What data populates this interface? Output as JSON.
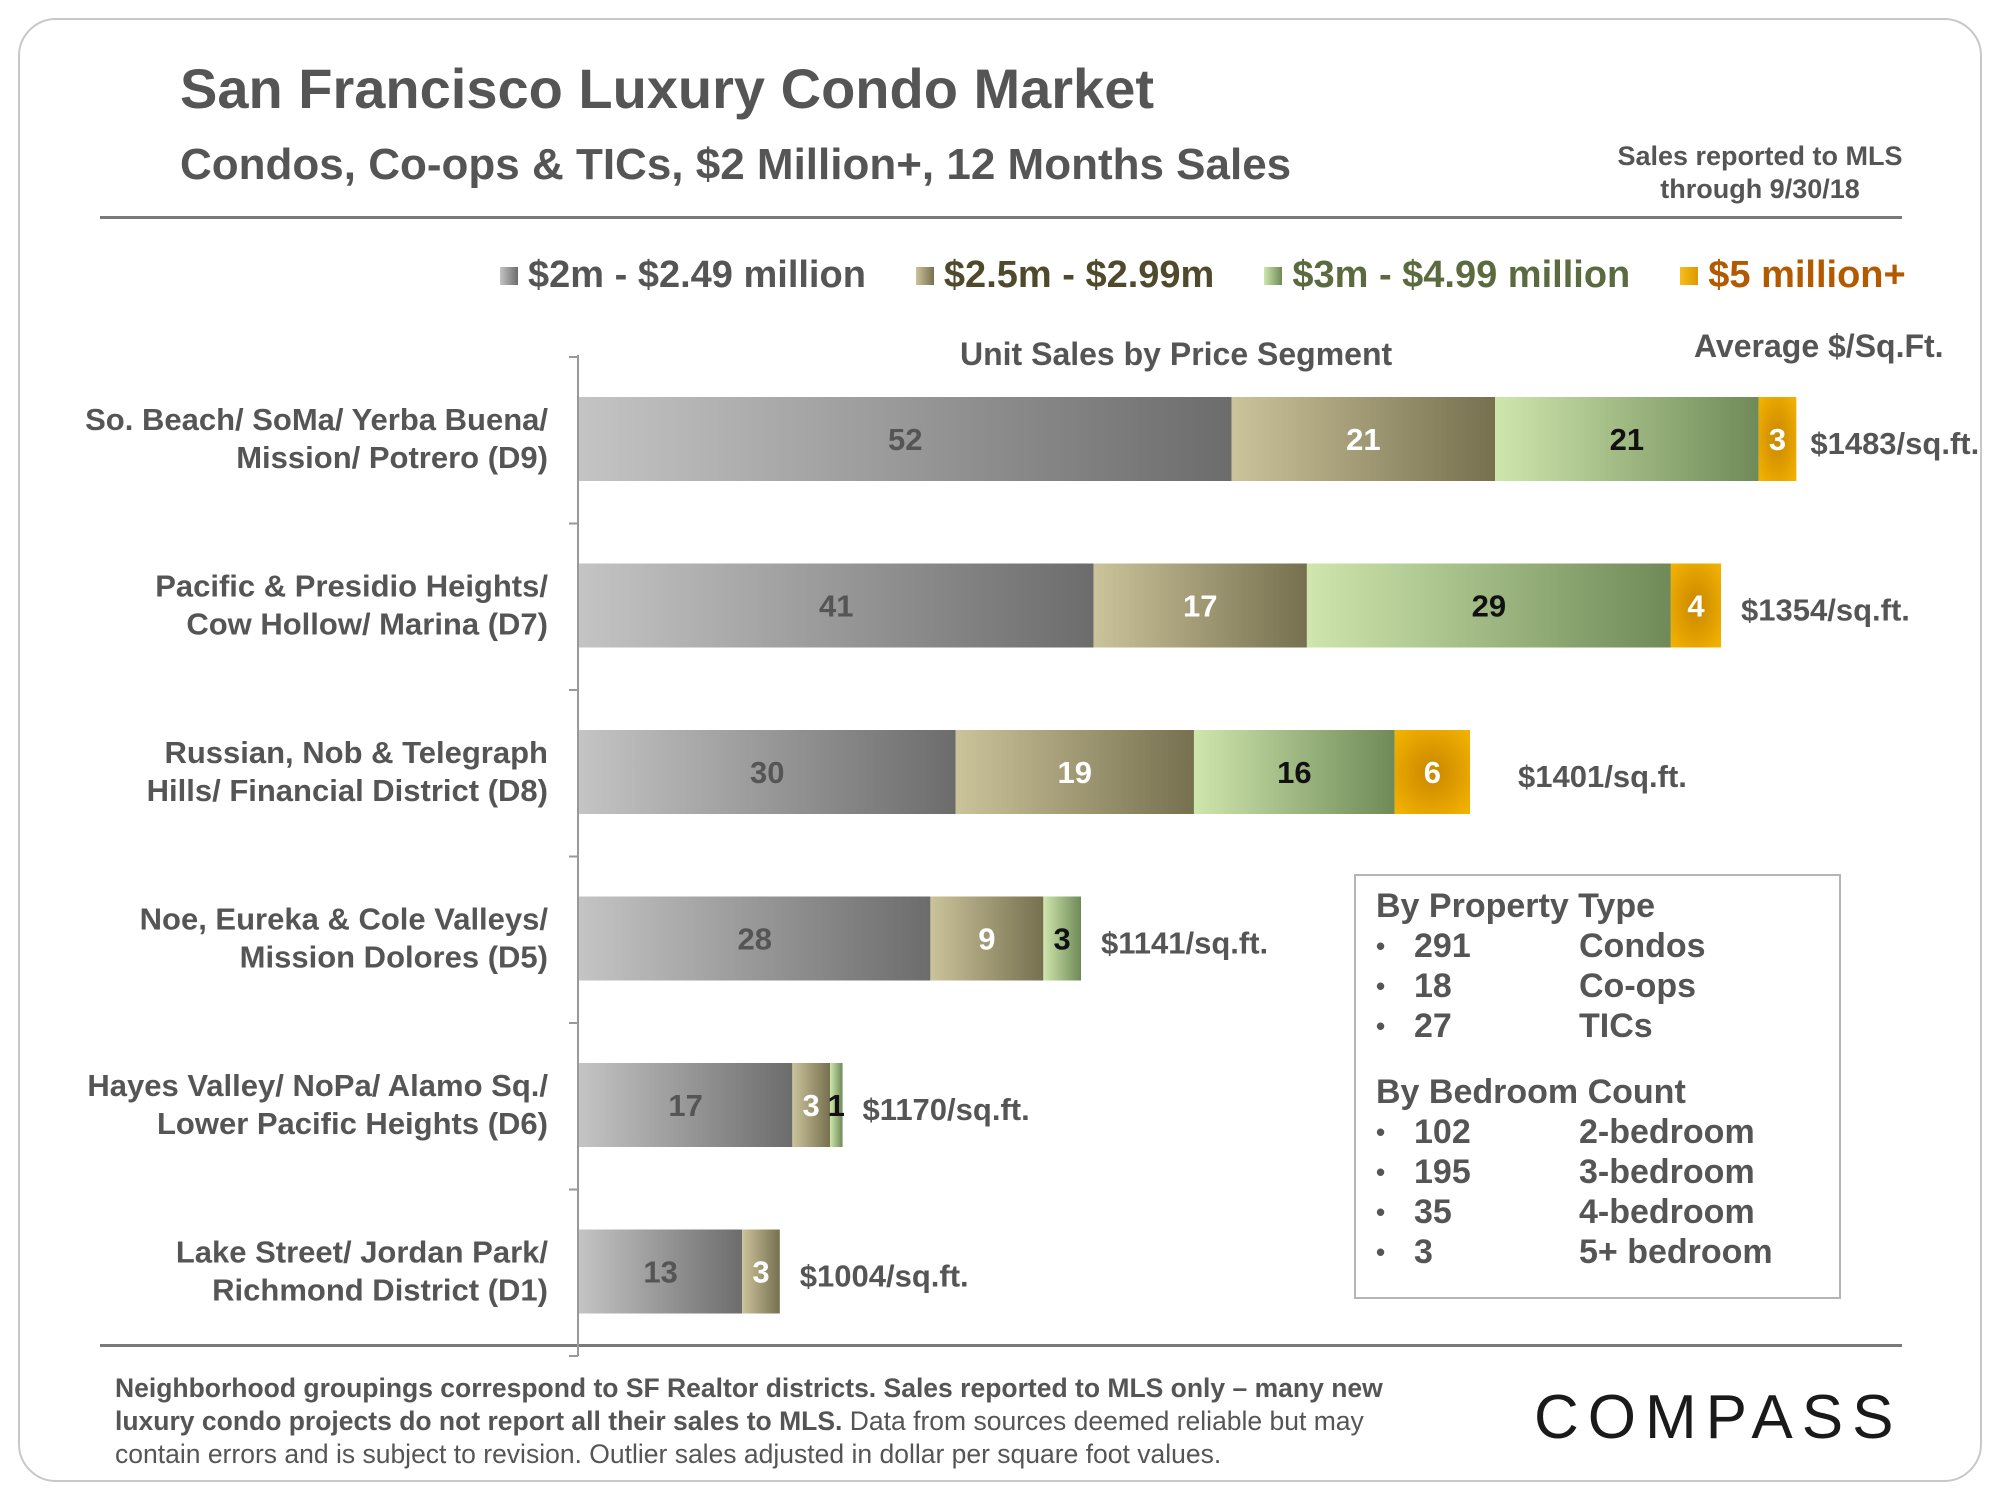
{
  "header": {
    "title": "San Francisco Luxury Condo Market",
    "subtitle": "Condos, Co-ops & TICs, $2 Million+, 12 Months Sales",
    "note_line1": "Sales reported to MLS",
    "note_line2": "through 9/30/18"
  },
  "chart_data": {
    "type": "bar",
    "orientation": "horizontal",
    "stacked": true,
    "title": "Unit Sales by Price Segment",
    "secondary_label": "Average $/Sq.Ft.",
    "categories": [
      [
        "So. Beach/ SoMa/ Yerba Buena/",
        "Mission/ Potrero (D9)"
      ],
      [
        "Pacific & Presidio Heights/",
        "Cow Hollow/ Marina (D7)"
      ],
      [
        "Russian, Nob & Telegraph",
        "Hills/ Financial District (D8)"
      ],
      [
        "Noe, Eureka & Cole Valleys/",
        "Mission Dolores (D5)"
      ],
      [
        "Hayes Valley/ NoPa/ Alamo Sq./",
        "Lower Pacific Heights (D6)"
      ],
      [
        "Lake Street/ Jordan Park/",
        "Richmond District (D1)"
      ]
    ],
    "series": [
      {
        "name": "$2m - $2.49 million",
        "color": "#8c8c8c",
        "colors": [
          "#c4c4c4",
          "#6c6c6c"
        ],
        "label_color": "#555555",
        "values": [
          52,
          41,
          30,
          28,
          17,
          13
        ]
      },
      {
        "name": "$2.5m - $2.99m",
        "color": "#8a8462",
        "colors": [
          "#cbc39a",
          "#76704f"
        ],
        "label_color": "#ffffff",
        "values": [
          21,
          17,
          19,
          9,
          3,
          3
        ]
      },
      {
        "name": "$3m - $4.99 million",
        "color": "#8fa672",
        "colors": [
          "#cfe6ad",
          "#6f8a58"
        ],
        "label_color": "#111111",
        "values": [
          21,
          29,
          16,
          3,
          1,
          0
        ]
      },
      {
        "name": "$5 million+",
        "color": "#e0a000",
        "colors": [
          "#f7bd1d",
          "#dd9a00"
        ],
        "label_color": "#ffffff",
        "values": [
          3,
          4,
          6,
          0,
          0,
          0
        ]
      }
    ],
    "avg_price_per_sqft": [
      "$1483/sq.ft.",
      "$1354/sq.ft.",
      "$1401/sq.ft.",
      "$1141/sq.ft.",
      "$1170/sq.ft.",
      "$1004/sq.ft."
    ],
    "xlim": [
      0,
      100
    ],
    "grid": false,
    "legend_position": "top"
  },
  "legend": {
    "text_colors": [
      "#555555",
      "#4f4a2c",
      "#5b6b3f",
      "#b35a00"
    ]
  },
  "infobox": {
    "property_heading": "By Property Type",
    "property_items": [
      {
        "count": "291",
        "label": "Condos"
      },
      {
        "count": "18",
        "label": "Co-ops"
      },
      {
        "count": "27",
        "label": "TICs"
      }
    ],
    "bedroom_heading": "By Bedroom Count",
    "bedroom_items": [
      {
        "count": "102",
        "label": "2-bedroom"
      },
      {
        "count": "195",
        "label": "3-bedroom"
      },
      {
        "count": "35",
        "label": "4-bedroom"
      },
      {
        "count": "3",
        "label": "5+ bedroom"
      }
    ],
    "bullet": "•"
  },
  "footer": {
    "bold_text": "Neighborhood groupings correspond to SF Realtor districts. Sales reported to MLS only – many new luxury condo projects do not report all their sales to MLS.",
    "normal_text": " Data from sources deemed reliable but may contain errors and is subject to revision. Outlier sales adjusted in dollar per square foot values."
  },
  "logo": {
    "text": "COMPASS"
  }
}
